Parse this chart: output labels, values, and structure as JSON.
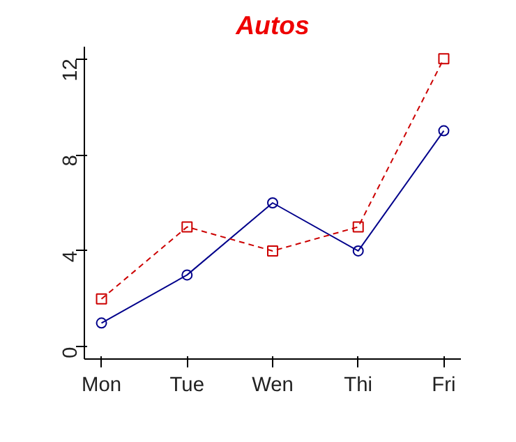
{
  "chart_data": {
    "type": "line",
    "title": "Autos",
    "categories": [
      "Mon",
      "Tue",
      "Wen",
      "Thi",
      "Fri"
    ],
    "series": [
      {
        "color": "#00008b",
        "values": [
          1,
          3,
          6,
          4,
          9
        ],
        "marker": "circle",
        "line_style": "solid"
      },
      {
        "color": "#cc0000",
        "values": [
          2,
          5,
          4,
          5,
          12
        ],
        "marker": "square",
        "line_style": "dashed"
      }
    ],
    "ylim": [
      -0.5,
      12.5
    ],
    "yticks": [
      0,
      4,
      8,
      12
    ],
    "grid": false
  }
}
